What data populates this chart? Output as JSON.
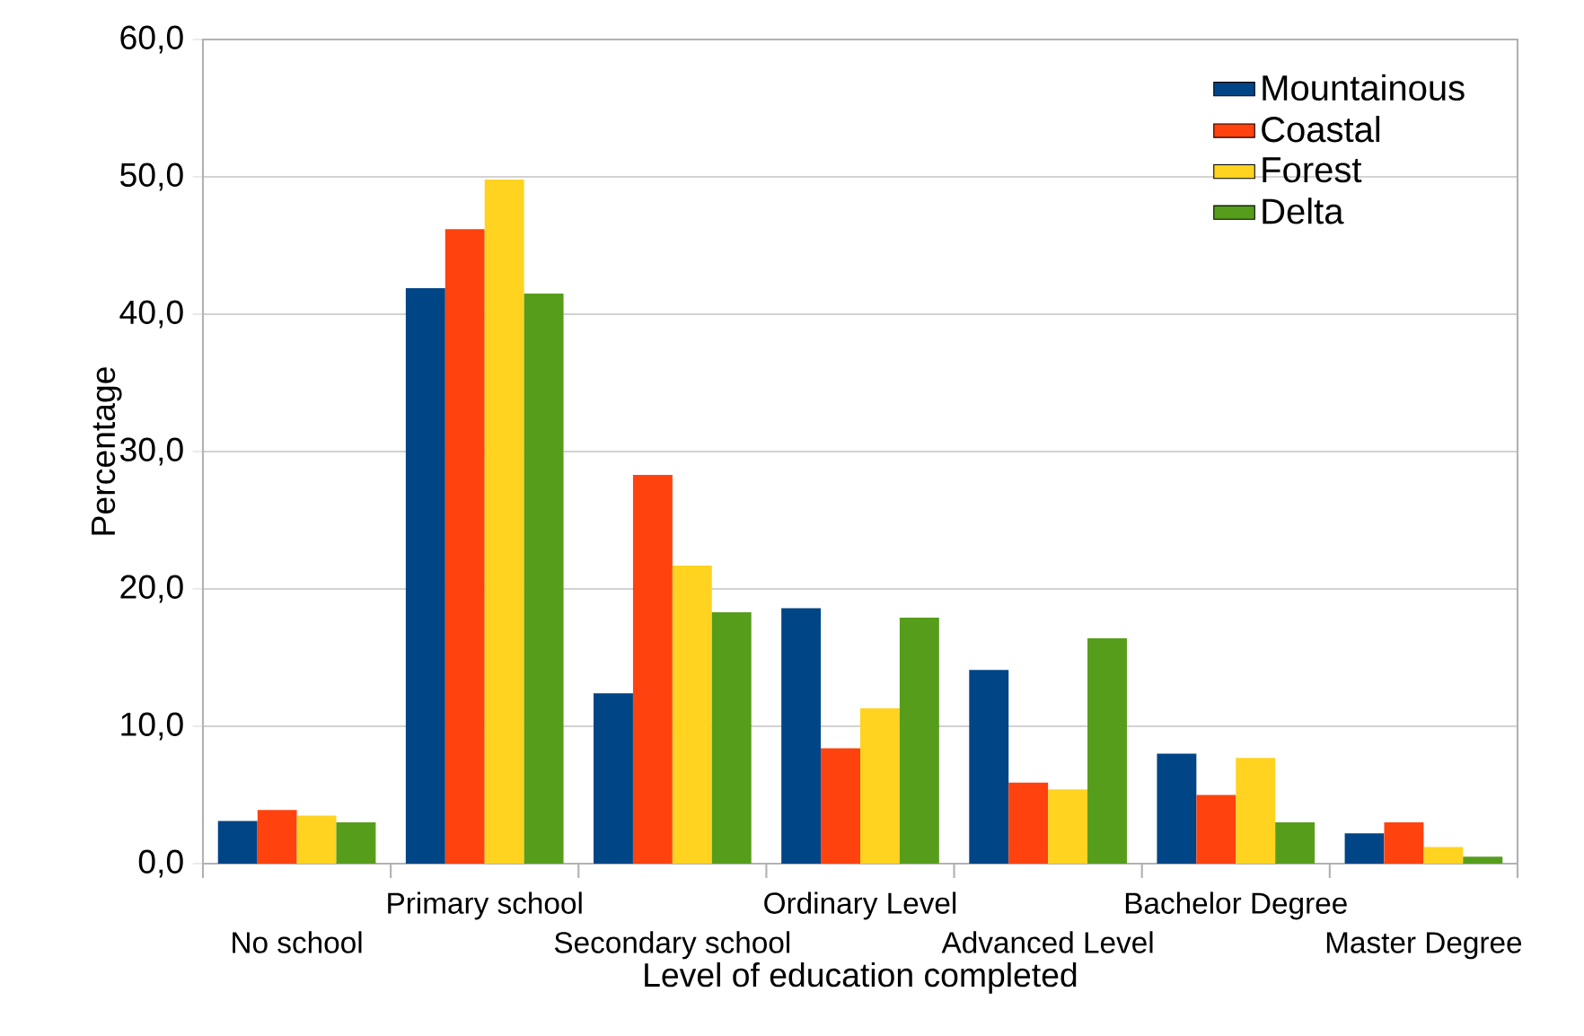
{
  "chart_data": {
    "type": "bar",
    "xlabel": "Level of education completed",
    "ylabel": "Percentage",
    "categories": [
      "No school",
      "Primary school",
      "Secondary school",
      "Ordinary Level",
      "Advanced Level",
      "Bachelor Degree",
      "Master Degree"
    ],
    "series": [
      {
        "name": "Mountainous",
        "color": "#004586",
        "values": [
          3.1,
          41.9,
          12.4,
          18.6,
          14.1,
          8.0,
          2.2
        ]
      },
      {
        "name": "Coastal",
        "color": "#ff420e",
        "values": [
          3.9,
          46.2,
          28.3,
          8.4,
          5.9,
          5.0,
          3.0
        ]
      },
      {
        "name": "Forest",
        "color": "#ffd320",
        "values": [
          3.5,
          49.8,
          21.7,
          11.3,
          5.4,
          7.7,
          1.2
        ]
      },
      {
        "name": "Delta",
        "color": "#579d1c",
        "values": [
          3.0,
          41.5,
          18.3,
          17.9,
          16.4,
          3.0,
          0.5
        ]
      }
    ],
    "ylim": [
      0,
      60
    ],
    "yticks": [
      {
        "value": 0,
        "label": "0,0"
      },
      {
        "value": 10,
        "label": "10,0"
      },
      {
        "value": 20,
        "label": "20,0"
      },
      {
        "value": 30,
        "label": "30,0"
      },
      {
        "value": 40,
        "label": "40,0"
      },
      {
        "value": 50,
        "label": "50,0"
      },
      {
        "value": 60,
        "label": "60,0"
      }
    ],
    "grid": "y",
    "legend": "top right"
  }
}
